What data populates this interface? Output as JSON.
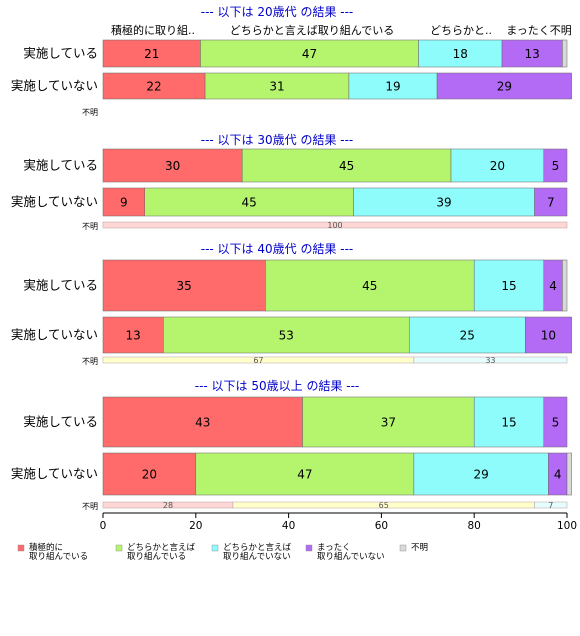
{
  "chart_data": {
    "type": "bar",
    "orientation": "horizontal",
    "stacked": true,
    "xlim": [
      0,
      100
    ],
    "x_ticks": [
      0,
      20,
      40,
      60,
      80,
      100
    ],
    "categories": [
      "積極的に取り組んでいる",
      "どちらかと言えば取り組んでいる",
      "どちらかと言えば取り組んでいない",
      "まったく取り組んでいない",
      "不明"
    ],
    "category_labels_top": [
      "積極的に取り組..",
      "どちらかと言えば取り組んでいる",
      "どちらかと..",
      "まったく不明"
    ],
    "colors": [
      "#ff6b6b",
      "#b5f56e",
      "#8ffcfc",
      "#b36bf5",
      "#d9d9d9"
    ],
    "legend": [
      {
        "line1": "積極的に",
        "line2": "取り組んでいる"
      },
      {
        "line1": "どちらかと言えば",
        "line2": "取り組んでいる"
      },
      {
        "line1": "どちらかと言えば",
        "line2": "取り組んでいない"
      },
      {
        "line1": "まったく",
        "line2": "取り組んでいない"
      },
      {
        "line1": "不明",
        "line2": ""
      }
    ],
    "groups": [
      {
        "title": "--- 以下は 20歳代 の結果 ---",
        "rows": [
          {
            "label": "実施している",
            "values": [
              21,
              47,
              18,
              13,
              1
            ]
          },
          {
            "label": "実施していない",
            "values": [
              22,
              31,
              19,
              29,
              0
            ]
          }
        ],
        "unknown": {
          "label": "不明",
          "values": [
            0,
            0,
            0,
            0,
            0
          ]
        }
      },
      {
        "title": "--- 以下は 30歳代 の結果 ---",
        "rows": [
          {
            "label": "実施している",
            "values": [
              30,
              45,
              20,
              5,
              0
            ]
          },
          {
            "label": "実施していない",
            "values": [
              9,
              45,
              39,
              7,
              0
            ]
          }
        ],
        "unknown": {
          "label": "不明",
          "values": [
            100,
            0,
            0,
            0,
            0
          ]
        }
      },
      {
        "title": "--- 以下は 40歳代 の結果 ---",
        "rows": [
          {
            "label": "実施している",
            "values": [
              35,
              45,
              15,
              4,
              1
            ]
          },
          {
            "label": "実施していない",
            "values": [
              13,
              53,
              25,
              10,
              0
            ]
          }
        ],
        "unknown": {
          "label": "不明",
          "values": [
            0,
            67,
            33,
            0,
            0
          ]
        }
      },
      {
        "title": "--- 以下は 50歳以上 の結果 ---",
        "rows": [
          {
            "label": "実施している",
            "values": [
              43,
              37,
              15,
              5,
              0
            ]
          },
          {
            "label": "実施していない",
            "values": [
              20,
              47,
              29,
              4,
              1
            ]
          }
        ],
        "unknown": {
          "label": "不明",
          "values": [
            28,
            65,
            7,
            0,
            0
          ]
        }
      }
    ]
  }
}
